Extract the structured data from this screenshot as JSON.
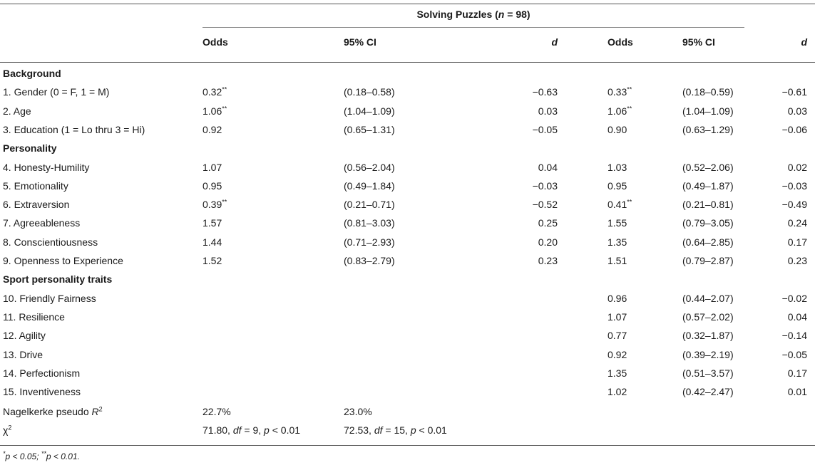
{
  "group_title": {
    "prefix": "Solving Puzzles (",
    "var": "n",
    "suffix": " = 98)"
  },
  "columns": {
    "odds1": "Odds",
    "ci1": "95% CI",
    "d1": "d",
    "odds2": "Odds",
    "ci2": "95% CI",
    "d2": "d"
  },
  "rows": [
    {
      "type": "section",
      "label": "Background"
    },
    {
      "type": "data",
      "label": "1.  Gender (0 = F, 1 = M)",
      "odds1": "0.32",
      "sig1": "**",
      "ci1": "(0.18–0.58)",
      "d1": "−0.63",
      "odds2": "0.33",
      "sig2": "**",
      "ci2": "(0.18–0.59)",
      "d2": "−0.61"
    },
    {
      "type": "data",
      "label": "2.  Age",
      "odds1": "1.06",
      "sig1": "**",
      "ci1": "(1.04–1.09)",
      "d1": "0.03",
      "odds2": "1.06",
      "sig2": "**",
      "ci2": "(1.04–1.09)",
      "d2": "0.03"
    },
    {
      "type": "data",
      "label": "3.  Education (1 = Lo thru 3 = Hi)",
      "odds1": "0.92",
      "sig1": "",
      "ci1": "(0.65–1.31)",
      "d1": "−0.05",
      "odds2": "0.90",
      "sig2": "",
      "ci2": "(0.63–1.29)",
      "d2": "−0.06"
    },
    {
      "type": "section",
      "label": "Personality"
    },
    {
      "type": "data",
      "label": "4.  Honesty-Humility",
      "odds1": "1.07",
      "sig1": "",
      "ci1": "(0.56–2.04)",
      "d1": "0.04",
      "odds2": "1.03",
      "sig2": "",
      "ci2": "(0.52–2.06)",
      "d2": "0.02"
    },
    {
      "type": "data",
      "label": "5.  Emotionality",
      "odds1": "0.95",
      "sig1": "",
      "ci1": "(0.49–1.84)",
      "d1": "−0.03",
      "odds2": "0.95",
      "sig2": "",
      "ci2": "(0.49–1.87)",
      "d2": "−0.03"
    },
    {
      "type": "data",
      "label": "6.  Extraversion",
      "odds1": "0.39",
      "sig1": "**",
      "ci1": "(0.21–0.71)",
      "d1": "−0.52",
      "odds2": "0.41",
      "sig2": "**",
      "ci2": "(0.21–0.81)",
      "d2": "−0.49"
    },
    {
      "type": "data",
      "label": "7.  Agreeableness",
      "odds1": "1.57",
      "sig1": "",
      "ci1": "(0.81–3.03)",
      "d1": "0.25",
      "odds2": "1.55",
      "sig2": "",
      "ci2": "(0.79–3.05)",
      "d2": "0.24"
    },
    {
      "type": "data",
      "label": "8.  Conscientiousness",
      "odds1": "1.44",
      "sig1": "",
      "ci1": "(0.71–2.93)",
      "d1": "0.20",
      "odds2": "1.35",
      "sig2": "",
      "ci2": "(0.64–2.85)",
      "d2": "0.17"
    },
    {
      "type": "data",
      "label": "9.  Openness to Experience",
      "odds1": "1.52",
      "sig1": "",
      "ci1": "(0.83–2.79)",
      "d1": "0.23",
      "odds2": "1.51",
      "sig2": "",
      "ci2": "(0.79–2.87)",
      "d2": "0.23"
    },
    {
      "type": "section",
      "label": "Sport personality traits"
    },
    {
      "type": "data",
      "label": "10.  Friendly Fairness",
      "odds1": "",
      "sig1": "",
      "ci1": "",
      "d1": "",
      "odds2": "0.96",
      "sig2": "",
      "ci2": "(0.44–2.07)",
      "d2": "−0.02"
    },
    {
      "type": "data",
      "label": "11.  Resilience",
      "odds1": "",
      "sig1": "",
      "ci1": "",
      "d1": "",
      "odds2": "1.07",
      "sig2": "",
      "ci2": "(0.57–2.02)",
      "d2": "0.04"
    },
    {
      "type": "data",
      "label": "12.  Agility",
      "odds1": "",
      "sig1": "",
      "ci1": "",
      "d1": "",
      "odds2": "0.77",
      "sig2": "",
      "ci2": "(0.32–1.87)",
      "d2": "−0.14"
    },
    {
      "type": "data",
      "label": "13.  Drive",
      "odds1": "",
      "sig1": "",
      "ci1": "",
      "d1": "",
      "odds2": "0.92",
      "sig2": "",
      "ci2": "(0.39–2.19)",
      "d2": "−0.05"
    },
    {
      "type": "data",
      "label": "14.  Perfectionism",
      "odds1": "",
      "sig1": "",
      "ci1": "",
      "d1": "",
      "odds2": "1.35",
      "sig2": "",
      "ci2": "(0.51–3.57)",
      "d2": "0.17"
    },
    {
      "type": "data",
      "label": "15.  Inventiveness",
      "odds1": "",
      "sig1": "",
      "ci1": "",
      "d1": "",
      "odds2": "1.02",
      "sig2": "",
      "ci2": "(0.42–2.47)",
      "d2": "0.01"
    }
  ],
  "nagelkerke": {
    "label": "Nagelkerke pseudo ",
    "var": "R",
    "sup": "2",
    "model1": "22.7%",
    "model2": "23.0%"
  },
  "chi": {
    "label": "χ",
    "sup": "2",
    "model1": {
      "value": "71.80, ",
      "df_var": "df",
      "df_val": " = 9, ",
      "p_var": "p",
      "p_val": " < 0.01"
    },
    "model2": {
      "value": "72.53, ",
      "df_var": "df",
      "df_val": " = 15, ",
      "p_var": "p",
      "p_val": " < 0.01"
    }
  },
  "footnote": {
    "sup1": "*",
    "t1": "p < 0.05; ",
    "sup2": "**",
    "t2": "p < 0.01."
  }
}
